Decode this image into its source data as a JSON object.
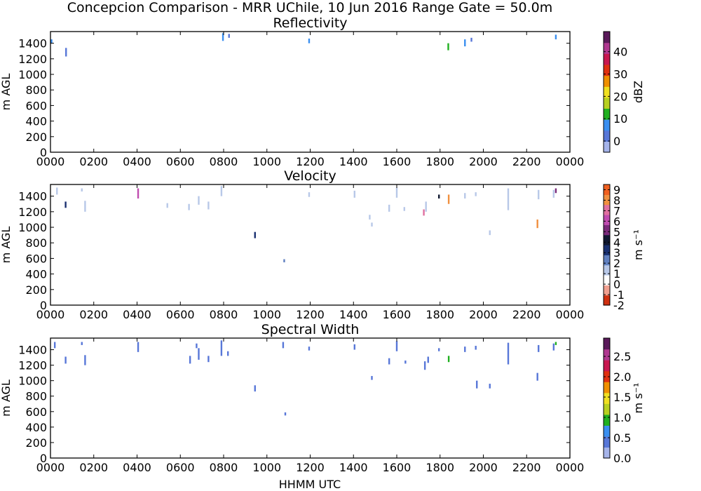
{
  "figure": {
    "suptitle": "Concepcion Comparison - MRR UChile, 10 Jun 2016 Range Gate = 50.0m",
    "xlabel": "HHMM UTC"
  },
  "chart_data": [
    {
      "type": "heatmap",
      "title": "Reflectivity",
      "ylabel": "m AGL",
      "x_ticks": [
        "0000",
        "0200",
        "0400",
        "0600",
        "0800",
        "1000",
        "1200",
        "1400",
        "1600",
        "1800",
        "2000",
        "2200",
        "0000"
      ],
      "xlim_hours": [
        0,
        24
      ],
      "y_ticks": [
        0,
        200,
        400,
        600,
        800,
        1000,
        1200,
        1400
      ],
      "ylim": [
        0,
        1550
      ],
      "colorbar": {
        "label": "dBZ",
        "range": [
          -5,
          49
        ],
        "ticks": [
          0,
          10,
          20,
          30,
          40
        ],
        "tick_labels": [
          "0",
          "10",
          "20",
          "30",
          "40"
        ],
        "colors": [
          "#a6b4ea",
          "#5877d8",
          "#3a8ff0",
          "#20b020",
          "#b8d020",
          "#f0e020",
          "#f09000",
          "#e03010",
          "#c81850",
          "#b03890",
          "#5a1a5a"
        ]
      },
      "cells": [
        {
          "t": 0.05,
          "z0": 1400,
          "z1": 1450,
          "v": 2
        },
        {
          "t": 0.72,
          "z0": 1230,
          "z1": 1340,
          "v": 1
        },
        {
          "t": 7.97,
          "z0": 1430,
          "z1": 1530,
          "v": 2
        },
        {
          "t": 8.25,
          "z0": 1470,
          "z1": 1520,
          "v": 1
        },
        {
          "t": 11.95,
          "z0": 1400,
          "z1": 1460,
          "v": 2
        },
        {
          "t": 18.38,
          "z0": 1310,
          "z1": 1400,
          "v": 3
        },
        {
          "t": 19.15,
          "z0": 1360,
          "z1": 1450,
          "v": 2
        },
        {
          "t": 19.45,
          "z0": 1420,
          "z1": 1470,
          "v": 1
        },
        {
          "t": 23.35,
          "z0": 1450,
          "z1": 1510,
          "v": 2
        }
      ]
    },
    {
      "type": "heatmap",
      "title": "Velocity",
      "ylabel": "m AGL",
      "x_ticks": [
        "0000",
        "0200",
        "0400",
        "0600",
        "0800",
        "1000",
        "1200",
        "1400",
        "1600",
        "1800",
        "2000",
        "2200",
        "0000"
      ],
      "xlim_hours": [
        0,
        24
      ],
      "y_ticks": [
        0,
        200,
        400,
        600,
        800,
        1000,
        1200,
        1400
      ],
      "ylim": [
        0,
        1550
      ],
      "colorbar": {
        "label": "m s⁻¹",
        "range": [
          -2,
          9.5
        ],
        "ticks": [
          -2,
          -1,
          0,
          1,
          2,
          3,
          4,
          5,
          6,
          7,
          8,
          9
        ],
        "tick_labels": [
          "-2",
          "-1",
          "0",
          "1",
          "2",
          "3",
          "4",
          "5",
          "6",
          "7",
          "8",
          "9"
        ],
        "colors": [
          "#d03010",
          "#f0a090",
          "#ffffff",
          "#b8c8e8",
          "#6080c0",
          "#1a3070",
          "#101830",
          "#7a2a7a",
          "#c04cb0",
          "#e070a0",
          "#f09040",
          "#f06020"
        ]
      },
      "cells": [
        {
          "t": 0.3,
          "z0": 1420,
          "z1": 1510,
          "v": 3
        },
        {
          "t": 0.7,
          "z0": 1250,
          "z1": 1330,
          "v": 5
        },
        {
          "t": 1.45,
          "z0": 1460,
          "z1": 1500,
          "v": 3
        },
        {
          "t": 1.6,
          "z0": 1200,
          "z1": 1340,
          "v": 3
        },
        {
          "t": 4.05,
          "z0": 1370,
          "z1": 1500,
          "v": 8
        },
        {
          "t": 5.4,
          "z0": 1250,
          "z1": 1310,
          "v": 3
        },
        {
          "t": 6.4,
          "z0": 1220,
          "z1": 1300,
          "v": 3
        },
        {
          "t": 6.75,
          "z0": 1420,
          "z1": 1500,
          "v": 2
        },
        {
          "t": 6.85,
          "z0": 1290,
          "z1": 1400,
          "v": 3
        },
        {
          "t": 7.3,
          "z0": 1230,
          "z1": 1330,
          "v": 3
        },
        {
          "t": 7.35,
          "z0": 1440,
          "z1": 1490,
          "v": 2
        },
        {
          "t": 7.9,
          "z0": 1400,
          "z1": 1530,
          "v": 3
        },
        {
          "t": 8.15,
          "z0": 1290,
          "z1": 1350,
          "v": 2
        },
        {
          "t": 8.35,
          "z0": 1450,
          "z1": 1500,
          "v": 2
        },
        {
          "t": 9.45,
          "z0": 860,
          "z1": 940,
          "v": 5
        },
        {
          "t": 10.7,
          "z0": 1410,
          "z1": 1510,
          "v": 2
        },
        {
          "t": 10.8,
          "z0": 550,
          "z1": 590,
          "v": 4
        },
        {
          "t": 11.95,
          "z0": 1390,
          "z1": 1450,
          "v": 3
        },
        {
          "t": 14.05,
          "z0": 1380,
          "z1": 1470,
          "v": 3
        },
        {
          "t": 14.75,
          "z0": 1100,
          "z1": 1160,
          "v": 3
        },
        {
          "t": 14.85,
          "z0": 1010,
          "z1": 1060,
          "v": 3
        },
        {
          "t": 15.65,
          "z0": 1200,
          "z1": 1290,
          "v": 3
        },
        {
          "t": 16.0,
          "z0": 1380,
          "z1": 1510,
          "v": 3
        },
        {
          "t": 16.35,
          "z0": 1210,
          "z1": 1260,
          "v": 3
        },
        {
          "t": 17.25,
          "z0": 1150,
          "z1": 1230,
          "v": 9
        },
        {
          "t": 17.35,
          "z0": 1200,
          "z1": 1330,
          "v": 3
        },
        {
          "t": 17.95,
          "z0": 1370,
          "z1": 1420,
          "v": 6
        },
        {
          "t": 18.4,
          "z0": 1300,
          "z1": 1420,
          "v": 10
        },
        {
          "t": 19.15,
          "z0": 1370,
          "z1": 1440,
          "v": 3
        },
        {
          "t": 19.65,
          "z0": 1400,
          "z1": 1450,
          "v": 3
        },
        {
          "t": 19.7,
          "z0": 900,
          "z1": 1000,
          "v": 2
        },
        {
          "t": 20.3,
          "z0": 900,
          "z1": 960,
          "v": 3
        },
        {
          "t": 21.15,
          "z0": 1220,
          "z1": 1500,
          "v": 3
        },
        {
          "t": 22.5,
          "z0": 990,
          "z1": 1100,
          "v": 10
        },
        {
          "t": 22.55,
          "z0": 1360,
          "z1": 1480,
          "v": 3
        },
        {
          "t": 23.25,
          "z0": 1380,
          "z1": 1480,
          "v": 3
        },
        {
          "t": 23.35,
          "z0": 1440,
          "z1": 1500,
          "v": 7
        }
      ]
    },
    {
      "type": "heatmap",
      "title": "Spectral Width",
      "ylabel": "m AGL",
      "x_ticks": [
        "0000",
        "0200",
        "0400",
        "0600",
        "0800",
        "1000",
        "1200",
        "1400",
        "1600",
        "1800",
        "2000",
        "2200",
        "0000"
      ],
      "xlim_hours": [
        0,
        24
      ],
      "y_ticks": [
        0,
        200,
        400,
        600,
        800,
        1000,
        1200,
        1400
      ],
      "ylim": [
        0,
        1550
      ],
      "colorbar": {
        "label": "m s⁻¹",
        "range": [
          0,
          2.95
        ],
        "ticks": [
          0.0,
          0.5,
          1.0,
          1.5,
          2.0,
          2.5
        ],
        "tick_labels": [
          "0.0",
          "0.5",
          "1.0",
          "1.5",
          "2.0",
          "2.5"
        ],
        "colors": [
          "#a6b4ea",
          "#5877d8",
          "#3a8ff0",
          "#20b020",
          "#b8d020",
          "#f0e020",
          "#f09000",
          "#e03010",
          "#c81850",
          "#b03890",
          "#5a1a5a"
        ]
      },
      "cells": [
        {
          "t": 0.2,
          "z0": 1420,
          "z1": 1500,
          "v": 1
        },
        {
          "t": 0.7,
          "z0": 1220,
          "z1": 1310,
          "v": 1
        },
        {
          "t": 1.45,
          "z0": 1460,
          "z1": 1500,
          "v": 1
        },
        {
          "t": 1.6,
          "z0": 1200,
          "z1": 1330,
          "v": 1
        },
        {
          "t": 4.05,
          "z0": 1370,
          "z1": 1500,
          "v": 1
        },
        {
          "t": 6.45,
          "z0": 1220,
          "z1": 1320,
          "v": 1
        },
        {
          "t": 6.75,
          "z0": 1420,
          "z1": 1480,
          "v": 1
        },
        {
          "t": 6.85,
          "z0": 1270,
          "z1": 1420,
          "v": 1
        },
        {
          "t": 7.3,
          "z0": 1240,
          "z1": 1320,
          "v": 1
        },
        {
          "t": 7.9,
          "z0": 1320,
          "z1": 1520,
          "v": 1
        },
        {
          "t": 8.2,
          "z0": 1320,
          "z1": 1380,
          "v": 1
        },
        {
          "t": 9.45,
          "z0": 860,
          "z1": 940,
          "v": 1
        },
        {
          "t": 10.75,
          "z0": 1420,
          "z1": 1500,
          "v": 1
        },
        {
          "t": 10.85,
          "z0": 550,
          "z1": 590,
          "v": 1
        },
        {
          "t": 11.95,
          "z0": 1390,
          "z1": 1440,
          "v": 1
        },
        {
          "t": 14.05,
          "z0": 1400,
          "z1": 1470,
          "v": 1
        },
        {
          "t": 14.85,
          "z0": 1010,
          "z1": 1060,
          "v": 1
        },
        {
          "t": 15.65,
          "z0": 1210,
          "z1": 1290,
          "v": 1
        },
        {
          "t": 16.0,
          "z0": 1380,
          "z1": 1510,
          "v": 1
        },
        {
          "t": 16.4,
          "z0": 1220,
          "z1": 1260,
          "v": 1
        },
        {
          "t": 17.3,
          "z0": 1140,
          "z1": 1250,
          "v": 1
        },
        {
          "t": 17.45,
          "z0": 1230,
          "z1": 1310,
          "v": 1
        },
        {
          "t": 17.95,
          "z0": 1380,
          "z1": 1420,
          "v": 1
        },
        {
          "t": 18.4,
          "z0": 1240,
          "z1": 1320,
          "v": 3
        },
        {
          "t": 19.15,
          "z0": 1370,
          "z1": 1440,
          "v": 1
        },
        {
          "t": 19.7,
          "z0": 900,
          "z1": 1000,
          "v": 1
        },
        {
          "t": 19.65,
          "z0": 1400,
          "z1": 1450,
          "v": 1
        },
        {
          "t": 20.3,
          "z0": 900,
          "z1": 960,
          "v": 1
        },
        {
          "t": 21.15,
          "z0": 1210,
          "z1": 1490,
          "v": 1
        },
        {
          "t": 22.5,
          "z0": 1000,
          "z1": 1100,
          "v": 1
        },
        {
          "t": 22.55,
          "z0": 1370,
          "z1": 1460,
          "v": 1
        },
        {
          "t": 23.25,
          "z0": 1390,
          "z1": 1480,
          "v": 1
        },
        {
          "t": 23.35,
          "z0": 1460,
          "z1": 1500,
          "v": 3
        }
      ]
    }
  ]
}
